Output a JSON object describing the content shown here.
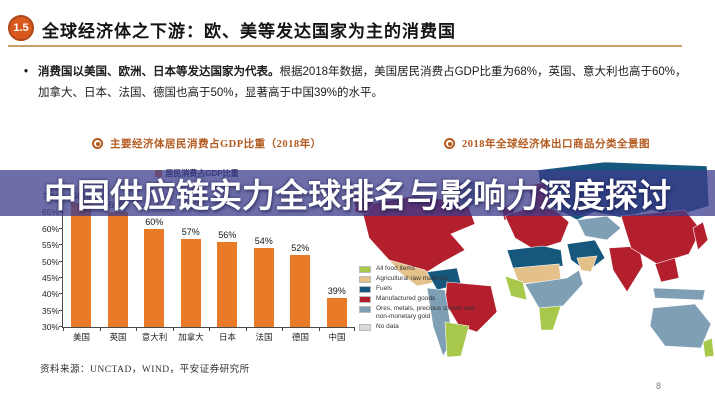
{
  "page": {
    "number": "8"
  },
  "header": {
    "badge": "1.5",
    "badge_color": "#d9591d",
    "title": "全球经济体之下游：欧、美等发达国家为主的消费国",
    "underline_color": "#c9a06a"
  },
  "bullet": {
    "lead": "消费国以美国、欧洲、日本等发达国家为代表。",
    "body": "根据2018年数据，美国居民消费占GDP比重为68%，英国、意大利也高于60%，加拿大、日本、法国、德国也高于50%，显著高于中国39%的水平。"
  },
  "sections": {
    "left_title": "主要经济体居民消费占GDP比重（2018年）",
    "right_title": "2018年全球经济体出口商品分类全景图",
    "title_color": "#b35a1f"
  },
  "overlay": {
    "text": "中国供应链实力全球排名与影响力深度探讨",
    "bg_color": "#3c3c8c",
    "bg_opacity": 0.75
  },
  "chart_data": {
    "type": "bar",
    "title": "主要经济体居民消费占GDP比重（2018年）",
    "legend": [
      "居民消费占GDP比重"
    ],
    "legend_position": "top",
    "categories": [
      "美国",
      "英国",
      "意大利",
      "加拿大",
      "日本",
      "法国",
      "德国",
      "中国"
    ],
    "values": [
      68,
      65,
      60,
      57,
      56,
      54,
      52,
      39
    ],
    "value_labels": [
      "68%",
      "65%",
      "60%",
      "57%",
      "56%",
      "54%",
      "52%",
      "39%"
    ],
    "unit": "%",
    "ylim": [
      30,
      70
    ],
    "ytick_step": 5,
    "grid": false,
    "bar_color": "#e87a28"
  },
  "map": {
    "title": "2018年全球经济体出口商品分类全景图",
    "legend": [
      {
        "key": "food",
        "label": "All food items",
        "color": "#a8c84c"
      },
      {
        "key": "agri",
        "label": "Agricultural raw materials",
        "color": "#e4c18a"
      },
      {
        "key": "fuels",
        "label": "Fuels",
        "color": "#16577e"
      },
      {
        "key": "manufactured",
        "label": "Manufactured goods",
        "color": "#b41f2e"
      },
      {
        "key": "ores",
        "label": "Ores, metals, precious stones and non-monetary gold",
        "color": "#7f9fb5"
      },
      {
        "key": "nodata",
        "label": "No data",
        "color": "#d9d9d9"
      }
    ]
  },
  "source": {
    "text": "资料来源：UNCTAD，WIND，平安证券研究所"
  }
}
